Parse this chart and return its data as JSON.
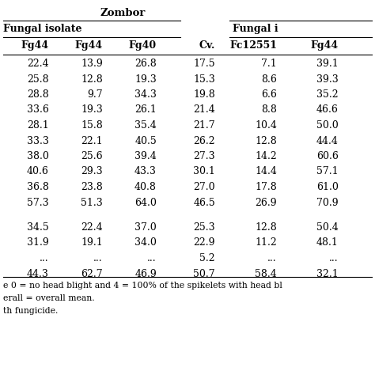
{
  "title": "Zombor",
  "header2": [
    "Fg44",
    "Fg44",
    "Fg40",
    "Cv.",
    "Fc12551",
    "Fg44"
  ],
  "rows": [
    [
      "22.4",
      "13.9",
      "26.8",
      "17.5",
      "7.1",
      "39.1"
    ],
    [
      "25.8",
      "12.8",
      "19.3",
      "15.3",
      "8.6",
      "39.3"
    ],
    [
      "28.8",
      "9.7",
      "34.3",
      "19.8",
      "6.6",
      "35.2"
    ],
    [
      "33.6",
      "19.3",
      "26.1",
      "21.4",
      "8.8",
      "46.6"
    ],
    [
      "28.1",
      "15.8",
      "35.4",
      "21.7",
      "10.4",
      "50.0"
    ],
    [
      "33.3",
      "22.1",
      "40.5",
      "26.2",
      "12.8",
      "44.4"
    ],
    [
      "38.0",
      "25.6",
      "39.4",
      "27.3",
      "14.2",
      "60.6"
    ],
    [
      "40.6",
      "29.3",
      "43.3",
      "30.1",
      "14.4",
      "57.1"
    ],
    [
      "36.8",
      "23.8",
      "40.8",
      "27.0",
      "17.8",
      "61.0"
    ],
    [
      "57.3",
      "51.3",
      "64.0",
      "46.5",
      "26.9",
      "70.9"
    ]
  ],
  "rows2": [
    [
      "34.5",
      "22.4",
      "37.0",
      "25.3",
      "12.8",
      "50.4"
    ],
    [
      "31.9",
      "19.1",
      "34.0",
      "22.9",
      "11.2",
      "48.1"
    ],
    [
      "...",
      "...",
      "...",
      "5.2",
      "...",
      "..."
    ],
    [
      "44.3",
      "62.7",
      "46.9",
      "50.7",
      "58.4",
      "32.1"
    ]
  ],
  "footnotes": [
    "e 0 = no head blight and 4 = 100% of the spikelets with head bl",
    "erall = overall mean.",
    "th fungicide."
  ]
}
